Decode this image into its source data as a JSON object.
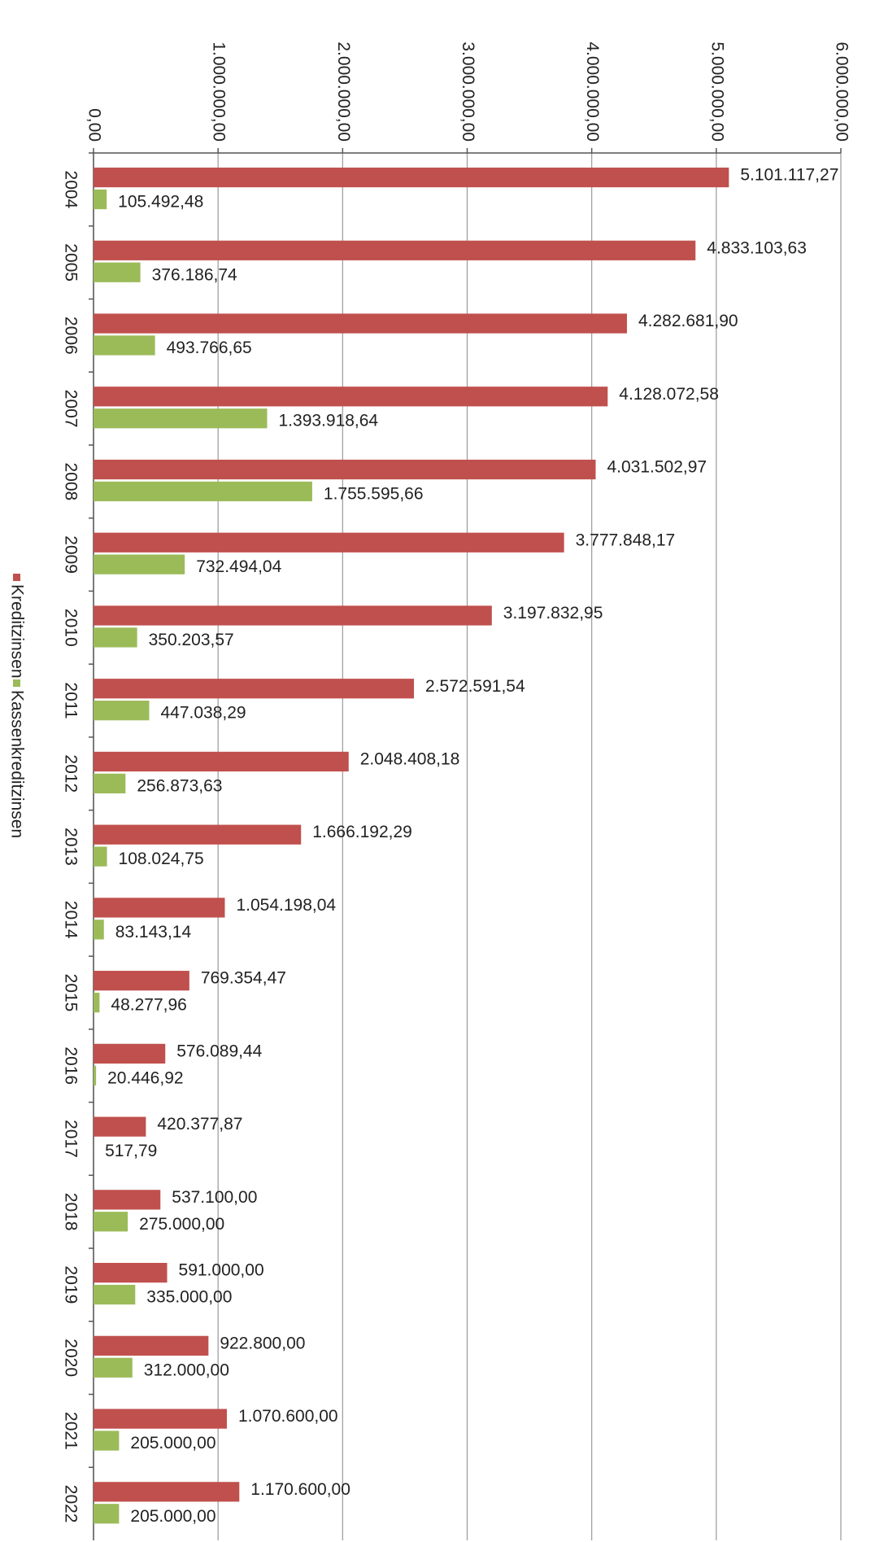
{
  "chart_data": {
    "type": "bar",
    "categories": [
      "2004",
      "2005",
      "2006",
      "2007",
      "2008",
      "2009",
      "2010",
      "2011",
      "2012",
      "2013",
      "2014",
      "2015",
      "2016",
      "2017",
      "2018",
      "2019",
      "2020",
      "2021",
      "2022"
    ],
    "series": [
      {
        "name": "Kreditzinsen",
        "color": "#c0504d",
        "values": [
          5101117.27,
          4833103.63,
          4282681.9,
          4128072.58,
          4031502.97,
          3777848.17,
          3197832.95,
          2572591.54,
          2048408.18,
          1666192.29,
          1054198.04,
          769354.47,
          576089.44,
          420377.87,
          537100.0,
          591000.0,
          922800.0,
          1070600.0,
          1170600.0
        ],
        "value_labels": [
          "5.101.117,27",
          "4.833.103,63",
          "4.282.681,90",
          "4.128.072,58",
          "4.031.502,97",
          "3.777.848,17",
          "3.197.832,95",
          "2.572.591,54",
          "2.048.408,18",
          "1.666.192,29",
          "1.054.198,04",
          "769.354,47",
          "576.089,44",
          "420.377,87",
          "537.100,00",
          "591.000,00",
          "922.800,00",
          "1.070.600,00",
          "1.170.600,00"
        ]
      },
      {
        "name": "Kassenkreditzinsen",
        "color": "#9bbb59",
        "values": [
          105492.48,
          376186.74,
          493766.65,
          1393918.64,
          1755595.66,
          732494.04,
          350203.57,
          447038.29,
          256873.63,
          108024.75,
          83143.14,
          48277.96,
          20446.92,
          517.79,
          275000.0,
          335000.0,
          312000.0,
          205000.0,
          205000.0
        ],
        "value_labels": [
          "105.492,48",
          "376.186,74",
          "493.766,65",
          "1.393.918,64",
          "1.755.595,66",
          "732.494,04",
          "350.203,57",
          "447.038,29",
          "256.873,63",
          "108.024,75",
          "83.143,14",
          "48.277,96",
          "20.446,92",
          "517,79",
          "275.000,00",
          "335.000,00",
          "312.000,00",
          "205.000,00",
          "205.000,00"
        ]
      }
    ],
    "xlim": [
      0,
      6000000
    ],
    "xticks": [
      {
        "value": 0,
        "label": "0,00"
      },
      {
        "value": 1000000,
        "label": "1.000.000,00"
      },
      {
        "value": 2000000,
        "label": "2.000.000,00"
      },
      {
        "value": 3000000,
        "label": "3.000.000,00"
      },
      {
        "value": 4000000,
        "label": "4.000.000,00"
      },
      {
        "value": 5000000,
        "label": "5.000.000,00"
      },
      {
        "value": 6000000,
        "label": "6.000.000,00"
      }
    ],
    "grid": true,
    "legend": "left"
  }
}
